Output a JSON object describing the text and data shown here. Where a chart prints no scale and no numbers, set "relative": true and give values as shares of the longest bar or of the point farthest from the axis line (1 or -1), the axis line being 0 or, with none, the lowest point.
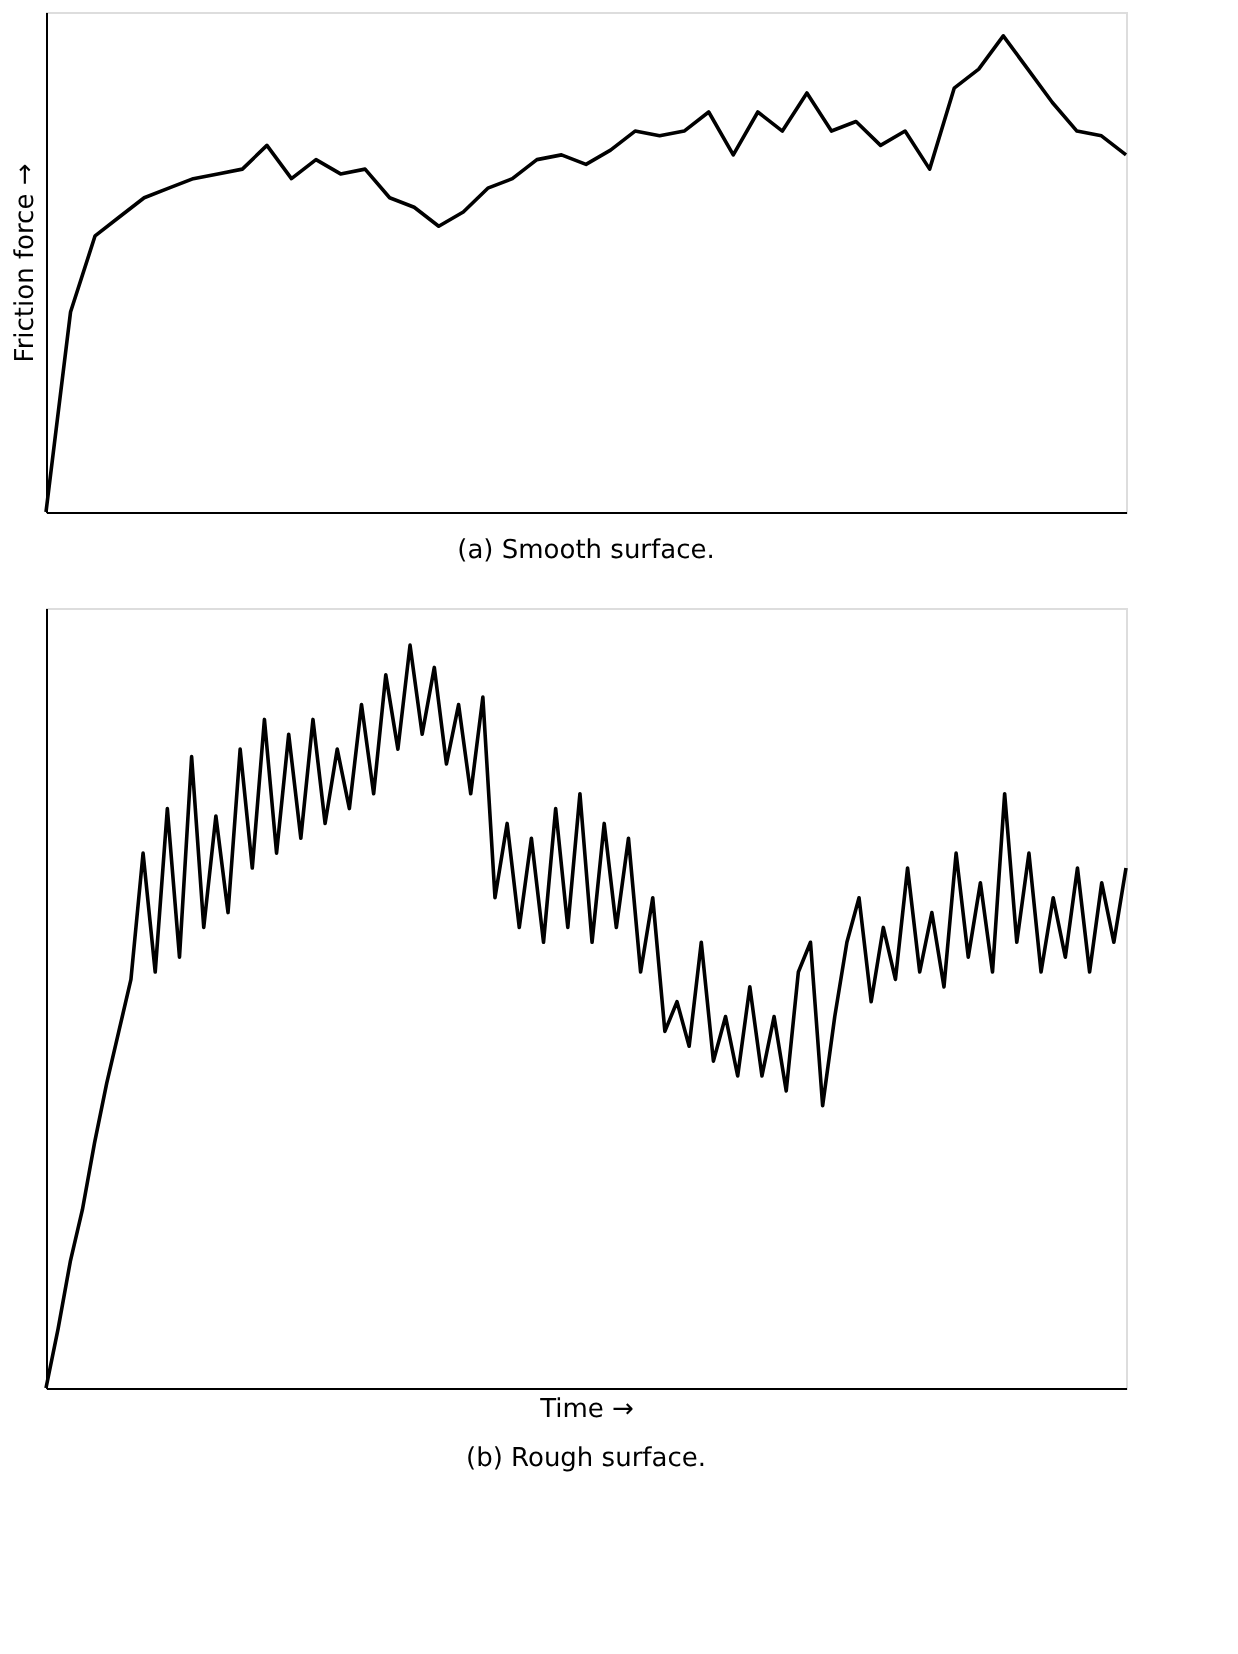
{
  "chart_data": [
    {
      "type": "line",
      "relative": true,
      "tick_labels": false,
      "grid": false,
      "title": "(a) Smooth surface.",
      "ylabel": "Friction force →",
      "categories": [
        null,
        null,
        null,
        null,
        null,
        null,
        null,
        null,
        null,
        null,
        null,
        null,
        null,
        null,
        null,
        null,
        null,
        null,
        null,
        null,
        null,
        null,
        null,
        null,
        null,
        null,
        null,
        null,
        null,
        null,
        null,
        null,
        null,
        null,
        null,
        null,
        null,
        null,
        null,
        null,
        null,
        null,
        null,
        null,
        null
      ],
      "series": [
        {
          "color": "#000000",
          "values": [
            0.0,
            0.42,
            0.58,
            0.62,
            0.66,
            0.68,
            0.7,
            0.71,
            0.72,
            0.77,
            0.7,
            0.74,
            0.71,
            0.72,
            0.66,
            0.64,
            0.6,
            0.63,
            0.68,
            0.7,
            0.74,
            0.75,
            0.73,
            0.76,
            0.8,
            0.79,
            0.8,
            0.84,
            0.75,
            0.84,
            0.8,
            0.88,
            0.8,
            0.82,
            0.77,
            0.8,
            0.72,
            0.89,
            0.93,
            1.0,
            0.93,
            0.86,
            0.8,
            0.79,
            0.75
          ]
        }
      ]
    },
    {
      "type": "line",
      "relative": true,
      "tick_labels": false,
      "grid": false,
      "title": "(b) Rough surface.",
      "xlabel": "Time →",
      "categories": [
        null,
        null,
        null,
        null,
        null,
        null,
        null,
        null,
        null,
        null,
        null,
        null,
        null,
        null,
        null,
        null,
        null,
        null,
        null,
        null,
        null,
        null,
        null,
        null,
        null,
        null,
        null,
        null,
        null,
        null,
        null,
        null,
        null,
        null,
        null,
        null,
        null,
        null,
        null,
        null,
        null,
        null,
        null,
        null,
        null,
        null,
        null,
        null,
        null,
        null,
        null,
        null,
        null,
        null,
        null,
        null,
        null,
        null,
        null,
        null,
        null,
        null,
        null,
        null,
        null,
        null,
        null,
        null,
        null,
        null,
        null,
        null,
        null,
        null,
        null,
        null,
        null,
        null,
        null,
        null,
        null,
        null,
        null,
        null,
        null,
        null,
        null,
        null,
        null,
        null
      ],
      "series": [
        {
          "color": "#000000",
          "values": [
            0.0,
            0.08,
            0.17,
            0.24,
            0.33,
            0.41,
            0.48,
            0.55,
            0.72,
            0.56,
            0.78,
            0.58,
            0.85,
            0.62,
            0.77,
            0.64,
            0.86,
            0.7,
            0.9,
            0.72,
            0.88,
            0.74,
            0.9,
            0.76,
            0.86,
            0.78,
            0.92,
            0.8,
            0.96,
            0.86,
            1.0,
            0.88,
            0.97,
            0.84,
            0.92,
            0.8,
            0.93,
            0.66,
            0.76,
            0.62,
            0.74,
            0.6,
            0.78,
            0.62,
            0.8,
            0.6,
            0.76,
            0.62,
            0.74,
            0.56,
            0.66,
            0.48,
            0.52,
            0.46,
            0.6,
            0.44,
            0.5,
            0.42,
            0.54,
            0.42,
            0.5,
            0.4,
            0.56,
            0.6,
            0.38,
            0.5,
            0.6,
            0.66,
            0.52,
            0.62,
            0.55,
            0.7,
            0.56,
            0.64,
            0.54,
            0.72,
            0.58,
            0.68,
            0.56,
            0.8,
            0.6,
            0.72,
            0.56,
            0.66,
            0.58,
            0.7,
            0.56,
            0.68,
            0.6,
            0.7
          ]
        }
      ]
    }
  ]
}
